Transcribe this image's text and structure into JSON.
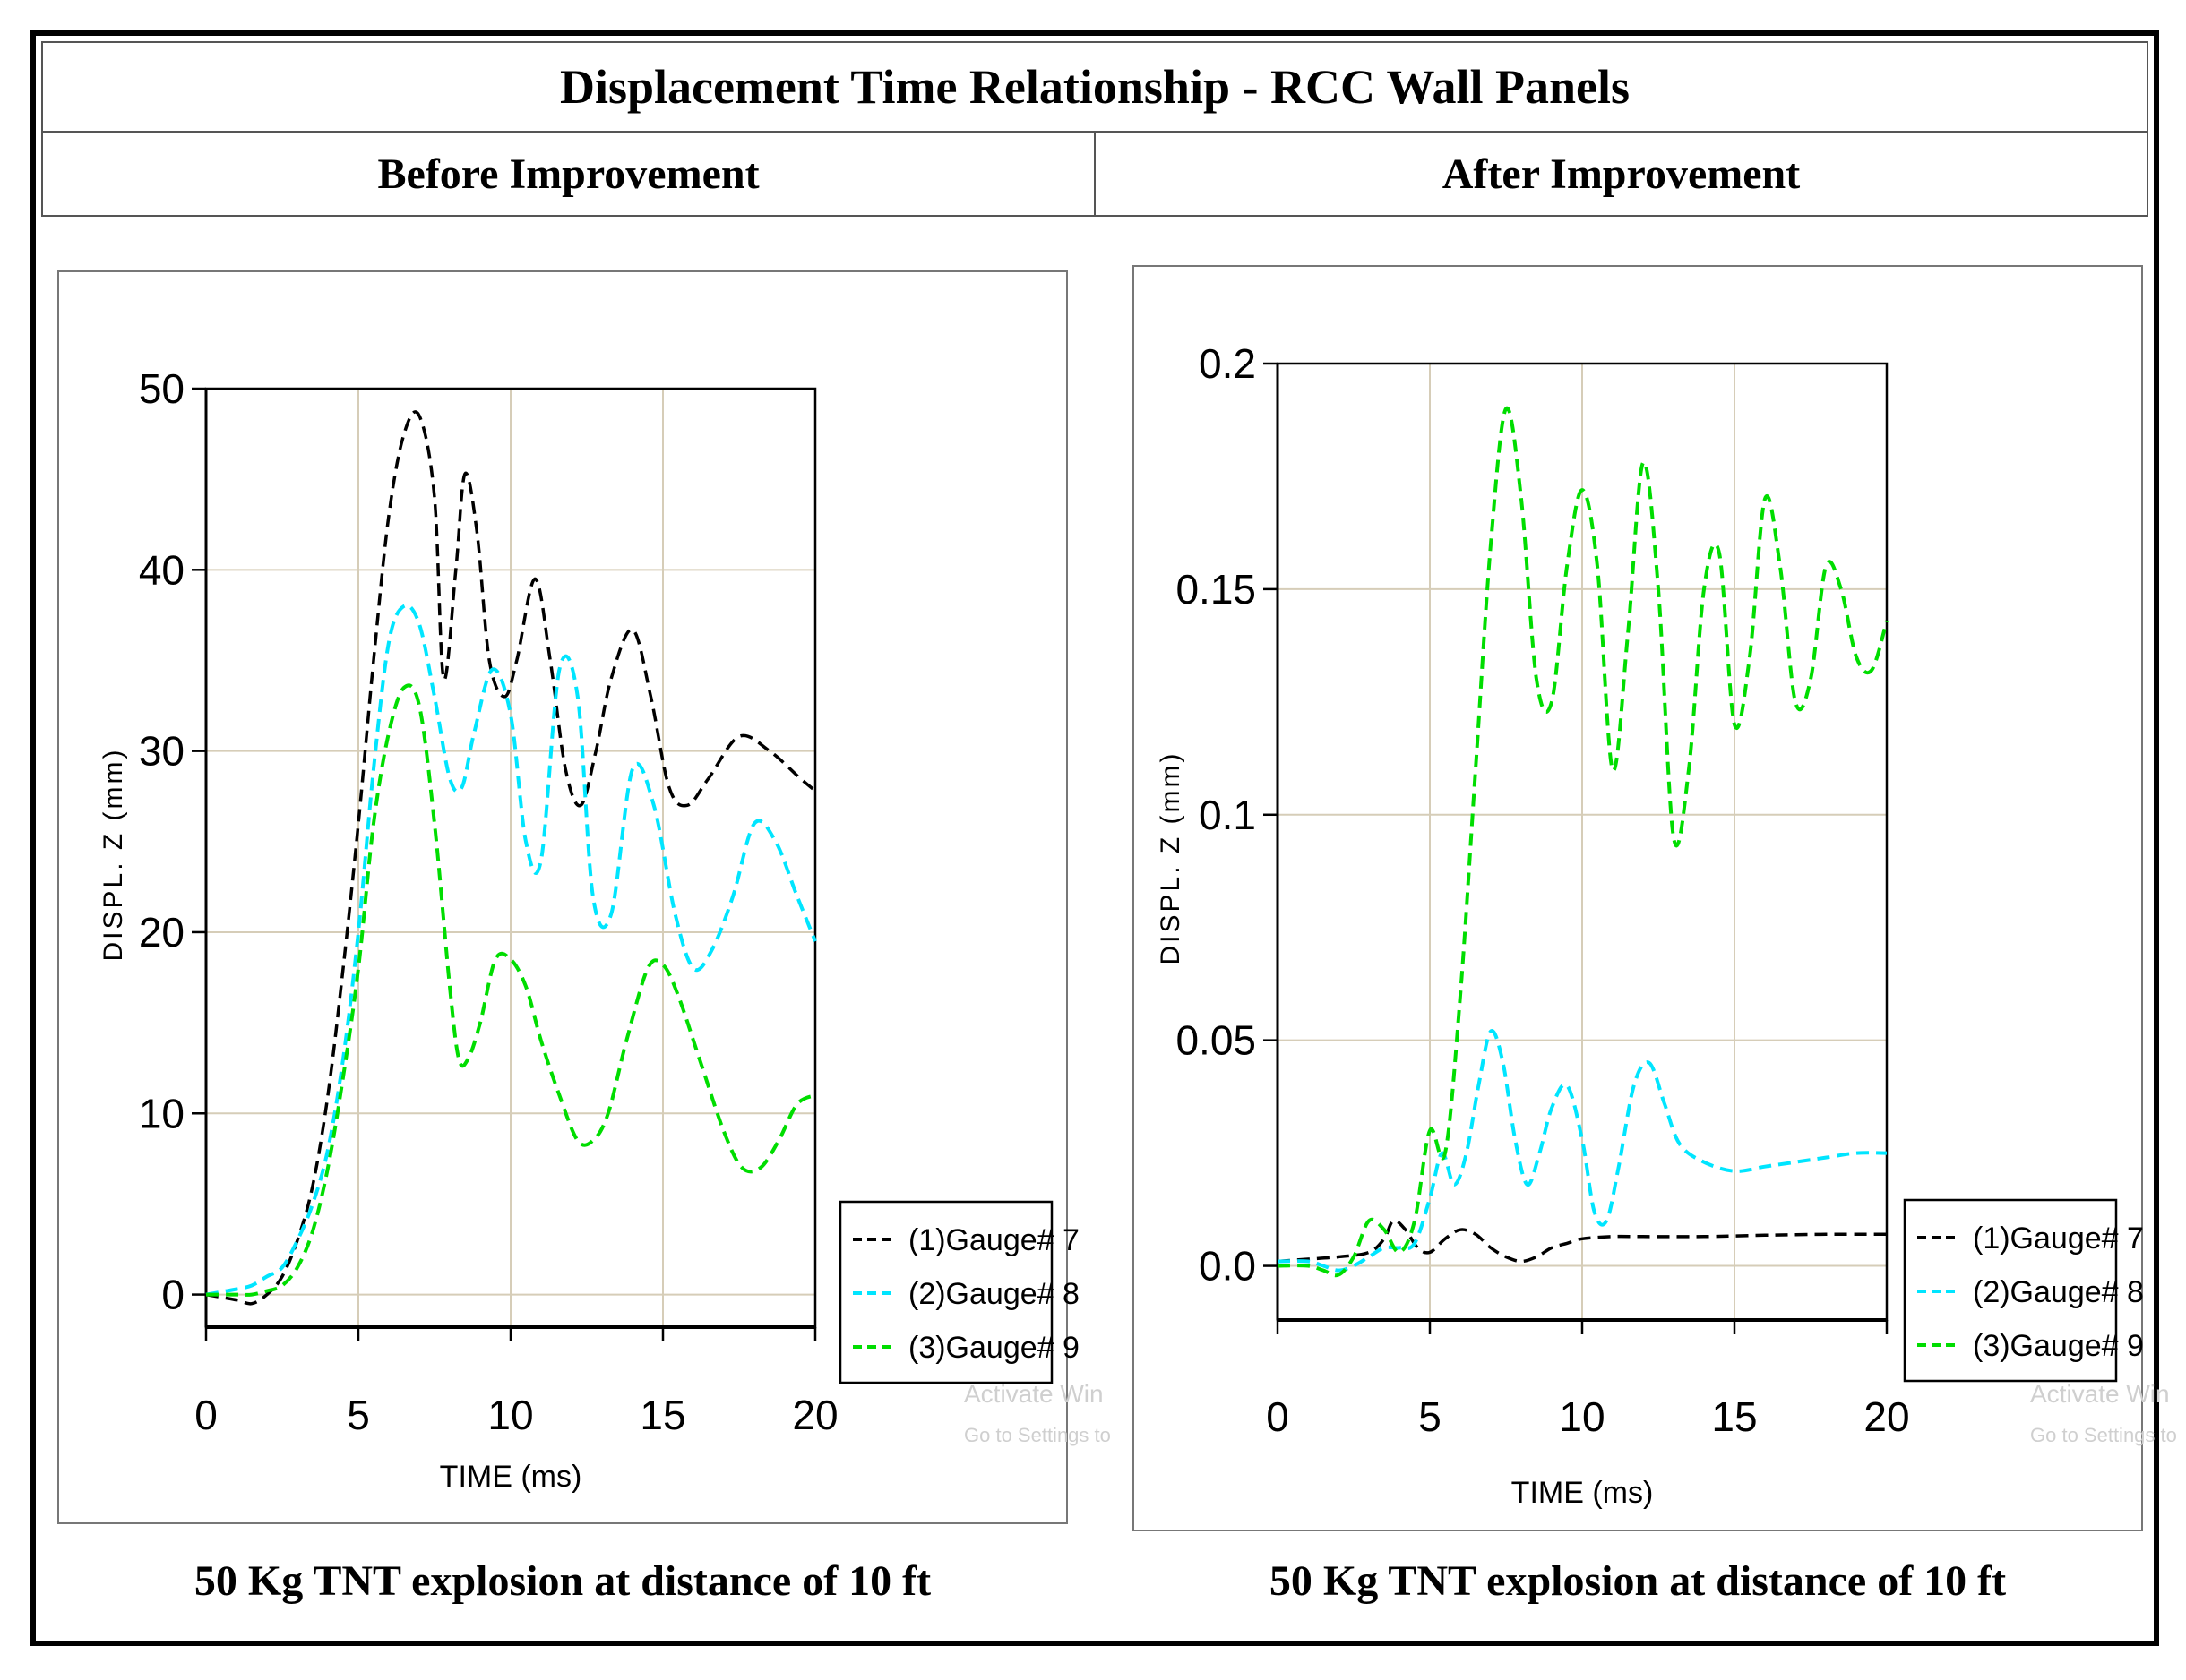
{
  "header": {
    "title": "Displacement Time Relationship - RCC Wall Panels",
    "left_subtitle": "Before Improvement",
    "right_subtitle": "After Improvement"
  },
  "watermark": {
    "line1": "Activate Win",
    "line2": "Go to Settings to"
  },
  "colors": {
    "gauge7": "#000000",
    "gauge8": "#00e5ff",
    "gauge9": "#00dd00",
    "grid": "#d6cdb8"
  },
  "chart_data": [
    {
      "type": "line",
      "panel": "Before Improvement",
      "caption": "50 Kg TNT explosion at distance of 10 ft",
      "xlabel": "TIME (ms)",
      "ylabel": "DISPL. Z (mm)",
      "xlim": [
        0,
        20
      ],
      "ylim": [
        -1.8,
        50
      ],
      "xticks": [
        0,
        5,
        10,
        15,
        20
      ],
      "xtick_labels": [
        "0",
        "5",
        "10",
        "15",
        "20"
      ],
      "yticks": [
        0,
        10,
        20,
        30,
        40,
        50
      ],
      "ytick_labels": [
        "0",
        "10",
        "20",
        "30",
        "40",
        "50"
      ],
      "legend": {
        "position": "bottom-right",
        "entries": [
          "(1)Gauge# 7",
          "(2)Gauge# 8",
          "(3)Gauge# 9"
        ]
      },
      "series": [
        {
          "name": "(1)Gauge# 7",
          "color": "#000000",
          "x": [
            0,
            1,
            1.5,
            2,
            2.5,
            3,
            3.5,
            4,
            4.5,
            5,
            5.5,
            6,
            6.5,
            7,
            7.5,
            7.8,
            8.2,
            8.5,
            8.9,
            9.3,
            9.8,
            10.2,
            10.8,
            11.3,
            11.8,
            12.3,
            12.8,
            13.3,
            14,
            14.6,
            15.2,
            15.8,
            16.5,
            17.5,
            18.5,
            19.5,
            20
          ],
          "y": [
            0,
            -0.3,
            -0.5,
            0,
            1,
            3,
            6,
            11,
            18,
            26,
            35,
            43,
            47.5,
            48.5,
            44,
            34,
            40,
            45.3,
            42,
            35,
            33,
            35,
            39.5,
            35,
            29,
            27,
            30,
            34,
            36.7,
            33,
            28,
            27,
            28.5,
            30.8,
            30,
            28.5,
            27.8
          ]
        },
        {
          "name": "(2)Gauge# 8",
          "color": "#00e5ff",
          "x": [
            0,
            1,
            1.5,
            2,
            2.5,
            3,
            3.5,
            4,
            4.5,
            5,
            5.5,
            6,
            6.5,
            7,
            7.5,
            8,
            8.4,
            8.8,
            9.4,
            10,
            10.5,
            11,
            11.6,
            12.2,
            12.7,
            13.3,
            14,
            14.7,
            15.4,
            16,
            16.6,
            17.3,
            18,
            18.7,
            19.4,
            20
          ],
          "y": [
            0,
            0.3,
            0.5,
            1,
            1.5,
            3,
            5,
            8,
            13,
            20,
            29,
            36,
            38,
            37,
            33,
            28.5,
            28,
            31,
            34.5,
            32,
            25,
            24,
            34.5,
            33,
            22,
            21,
            29,
            27,
            21,
            18,
            19,
            22,
            26,
            25,
            22,
            19.5
          ]
        },
        {
          "name": "(3)Gauge# 9",
          "color": "#00dd00",
          "x": [
            0,
            1,
            1.5,
            2,
            2.5,
            3,
            3.5,
            4,
            4.5,
            5,
            5.5,
            6,
            6.5,
            7,
            7.5,
            8,
            8.3,
            8.6,
            9,
            9.5,
            10,
            10.5,
            11,
            11.6,
            12.2,
            12.7,
            13.2,
            13.8,
            14.5,
            15,
            15.5,
            16.2,
            17,
            17.6,
            18.2,
            18.8,
            19.4,
            20
          ],
          "y": [
            0,
            0,
            0,
            0.2,
            0.5,
            1.5,
            3.5,
            7,
            12,
            18,
            26,
            31,
            33.5,
            32.5,
            26,
            17,
            13,
            13,
            15,
            18.5,
            18.5,
            17,
            14,
            11,
            8.5,
            8.5,
            10,
            14,
            18,
            18.2,
            16.5,
            13,
            9,
            7,
            7,
            8.5,
            10.5,
            11
          ]
        }
      ]
    },
    {
      "type": "line",
      "panel": "After Improvement",
      "caption": "50 Kg TNT explosion at distance of 10 ft",
      "xlabel": "TIME (ms)",
      "ylabel": "DISPL. Z (mm)",
      "xlim": [
        0,
        20
      ],
      "ylim": [
        -0.012,
        0.2
      ],
      "xticks": [
        0,
        5,
        10,
        15,
        20
      ],
      "xtick_labels": [
        "0",
        "5",
        "10",
        "15",
        "20"
      ],
      "yticks": [
        0.0,
        0.05,
        0.1,
        0.15,
        0.2
      ],
      "ytick_labels": [
        "0.0",
        "0.05",
        "0.1",
        "0.15",
        "0.2"
      ],
      "legend": {
        "position": "bottom-right",
        "entries": [
          "(1)Gauge# 7",
          "(2)Gauge# 8",
          "(3)Gauge# 9"
        ]
      },
      "series": [
        {
          "name": "(1)Gauge# 7",
          "color": "#000000",
          "x": [
            0,
            1,
            2,
            3,
            3.5,
            3.8,
            4.2,
            4.6,
            5,
            5.5,
            6,
            6.5,
            7,
            7.5,
            8,
            8.5,
            9,
            9.5,
            10,
            11,
            12,
            14,
            16,
            18,
            20
          ],
          "y": [
            0.001,
            0.0015,
            0.002,
            0.003,
            0.006,
            0.01,
            0.008,
            0.004,
            0.003,
            0.006,
            0.008,
            0.007,
            0.004,
            0.002,
            0.001,
            0.002,
            0.004,
            0.005,
            0.006,
            0.0065,
            0.0065,
            0.0065,
            0.0068,
            0.007,
            0.007
          ]
        },
        {
          "name": "(2)Gauge# 8",
          "color": "#00e5ff",
          "x": [
            0,
            1,
            1.5,
            2,
            2.5,
            3,
            3.5,
            4,
            4.5,
            5,
            5.4,
            5.8,
            6.2,
            6.6,
            7,
            7.4,
            7.8,
            8.2,
            8.6,
            9,
            9.5,
            10,
            10.4,
            10.8,
            11.2,
            11.7,
            12.2,
            12.7,
            13.2,
            14,
            15,
            16,
            17,
            18,
            19,
            20
          ],
          "y": [
            0.001,
            0.001,
            0.0,
            -0.001,
            0.0,
            0.002,
            0.004,
            0.004,
            0.005,
            0.015,
            0.025,
            0.018,
            0.025,
            0.04,
            0.052,
            0.045,
            0.028,
            0.018,
            0.025,
            0.035,
            0.04,
            0.028,
            0.012,
            0.01,
            0.022,
            0.04,
            0.045,
            0.036,
            0.027,
            0.023,
            0.021,
            0.022,
            0.023,
            0.024,
            0.025,
            0.025
          ]
        },
        {
          "name": "(3)Gauge# 9",
          "color": "#00dd00",
          "x": [
            0,
            1,
            1.5,
            2,
            2.5,
            3,
            3.5,
            4,
            4.5,
            5,
            5.5,
            6,
            6.5,
            7,
            7.5,
            8,
            8.5,
            9,
            9.5,
            10,
            10.5,
            11,
            11.5,
            12,
            12.5,
            13,
            13.5,
            14,
            14.5,
            15,
            15.5,
            16,
            16.5,
            17,
            17.5,
            18,
            18.5,
            19,
            19.5,
            20
          ],
          "y": [
            0,
            0,
            -0.001,
            -0.002,
            0.002,
            0.01,
            0.008,
            0.003,
            0.01,
            0.03,
            0.025,
            0.06,
            0.11,
            0.16,
            0.19,
            0.17,
            0.13,
            0.125,
            0.155,
            0.172,
            0.155,
            0.11,
            0.14,
            0.178,
            0.15,
            0.095,
            0.11,
            0.15,
            0.158,
            0.12,
            0.135,
            0.17,
            0.155,
            0.125,
            0.13,
            0.155,
            0.15,
            0.135,
            0.132,
            0.143
          ]
        }
      ]
    }
  ]
}
